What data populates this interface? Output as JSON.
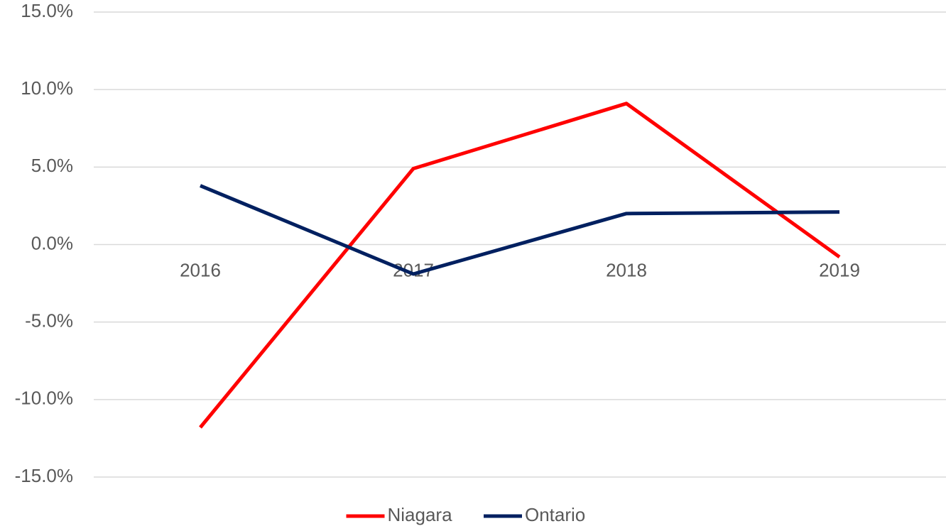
{
  "chart_data": {
    "type": "line",
    "categories": [
      "2016",
      "2017",
      "2018",
      "2019"
    ],
    "series": [
      {
        "name": "Niagara",
        "color": "#ff0000",
        "values": [
          -11.8,
          4.9,
          9.1,
          -0.8
        ]
      },
      {
        "name": "Ontario",
        "color": "#002060",
        "values": [
          3.8,
          -1.9,
          2.0,
          2.1
        ]
      }
    ],
    "ylim": [
      -15,
      15
    ],
    "yticks": [
      {
        "value": -15,
        "label": "-15.0%"
      },
      {
        "value": -10,
        "label": "-10.0%"
      },
      {
        "value": -5,
        "label": "-5.0%"
      },
      {
        "value": 0,
        "label": "0.0%"
      },
      {
        "value": 5,
        "label": "5.0%"
      },
      {
        "value": 10,
        "label": "10.0%"
      },
      {
        "value": 15,
        "label": "15.0%"
      }
    ],
    "grid": true,
    "legend": "bottom"
  }
}
